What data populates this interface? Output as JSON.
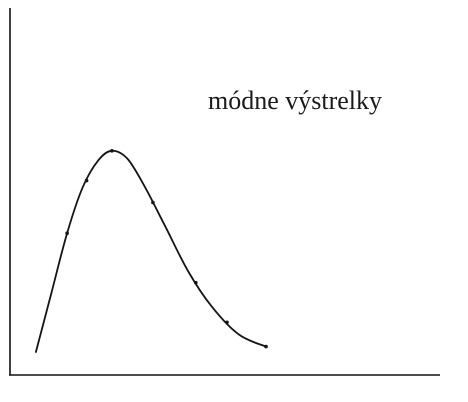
{
  "chart_data": {
    "type": "line",
    "annotation": "módne výstrelky",
    "xlabel": "",
    "ylabel": "",
    "xlim": [
      0,
      10
    ],
    "ylim": [
      0,
      10
    ],
    "series": [
      {
        "x": [
          0.1,
          0.5,
          0.9,
          1.3,
          1.7,
          2.05,
          2.45,
          2.9,
          3.4,
          4.0,
          4.6,
          5.3,
          6.0
        ],
        "y": [
          0.0,
          2.2,
          4.4,
          6.1,
          7.1,
          7.45,
          7.15,
          6.1,
          4.7,
          3.0,
          1.7,
          0.65,
          0.2
        ],
        "markers": [
          0.9,
          1.4,
          2.05,
          3.1,
          4.2,
          5.0,
          6.0
        ]
      }
    ],
    "grid": false,
    "legend": "none"
  }
}
